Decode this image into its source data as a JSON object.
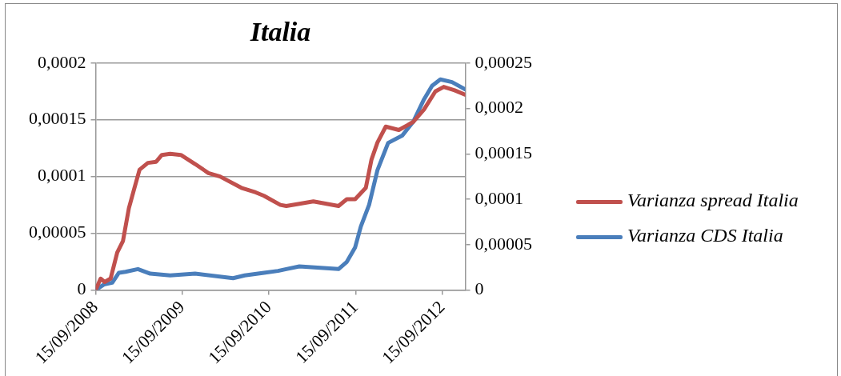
{
  "chart_data": {
    "type": "line",
    "title": "Italia",
    "xlim": [
      "2008-09-15",
      "2012-12-20"
    ],
    "xticks": [
      {
        "value": "2008-09-15",
        "label": "15/09/2008"
      },
      {
        "value": "2009-09-15",
        "label": "15/09/2009"
      },
      {
        "value": "2010-09-15",
        "label": "15/09/2010"
      },
      {
        "value": "2011-09-15",
        "label": "15/09/2011"
      },
      {
        "value": "2012-09-15",
        "label": "15/09/2012"
      }
    ],
    "ylim": [
      0,
      0.0002
    ],
    "yticks": [
      0,
      {
        "value": 5e-05,
        "label": "0,00005"
      },
      {
        "value": 0.0001,
        "label": "0,0001"
      },
      {
        "value": 0.00015,
        "label": "0,00015"
      },
      {
        "value": 0.0002,
        "label": "0,0002"
      }
    ],
    "y2lim": [
      0,
      0.00025
    ],
    "y2ticks": [
      0,
      {
        "value": 5e-05,
        "label": "0,00005"
      },
      {
        "value": 0.0001,
        "label": "0,0001"
      },
      {
        "value": 0.00015,
        "label": "0,00015"
      },
      {
        "value": 0.0002,
        "label": "0,0002"
      },
      {
        "value": 0.00025,
        "label": "0,00025"
      }
    ],
    "grid": "y",
    "legend": "right",
    "marker": "none",
    "line_style": "solid",
    "series": [
      {
        "name": "Varianza spread Italia",
        "color": "#c0504d",
        "x": [
          "2008-09-15",
          "2008-10-06",
          "2008-10-23",
          "2008-11-17",
          "2008-12-15",
          "2009-01-08",
          "2009-02-02",
          "2009-02-23",
          "2009-03-19",
          "2009-04-23",
          "2009-05-28",
          "2009-06-21",
          "2009-07-26",
          "2009-09-09",
          "2009-11-08",
          "2010-01-03",
          "2010-02-21",
          "2010-05-22",
          "2010-07-21",
          "2010-08-25",
          "2010-11-02",
          "2010-11-27",
          "2011-01-21",
          "2011-03-21",
          "2011-07-05",
          "2011-08-09",
          "2011-09-13",
          "2011-10-28",
          "2011-11-21",
          "2011-12-16",
          "2012-01-20",
          "2012-03-15",
          "2012-05-14",
          "2012-06-29",
          "2012-08-16",
          "2012-09-20",
          "2012-11-05",
          "2012-12-20"
        ],
        "values": [
          0,
          1e-05,
          7e-06,
          1e-05,
          3.3e-05,
          4.3e-05,
          7.2e-05,
          8.8e-05,
          0.000106,
          0.000112,
          0.000113,
          0.000119,
          0.00012,
          0.000119,
          0.000111,
          0.000103,
          0.0001,
          9e-05,
          8.6e-05,
          8.3e-05,
          7.5e-05,
          7.4e-05,
          7.6e-05,
          7.8e-05,
          7.4e-05,
          8e-05,
          8e-05,
          9e-05,
          0.000115,
          0.00013,
          0.000144,
          0.000141,
          0.000148,
          0.000159,
          0.000175,
          0.000179,
          0.000176,
          0.000172
        ]
      },
      {
        "name": "Varianza CDS Italia",
        "color": "#4a7ebb",
        "axis": "y2",
        "x": [
          "2008-09-15",
          "2008-10-20",
          "2008-11-24",
          "2008-12-22",
          "2009-01-19",
          "2009-03-12",
          "2009-05-03",
          "2009-07-26",
          "2009-11-08",
          "2010-04-17",
          "2010-06-05",
          "2010-08-25",
          "2010-10-23",
          "2010-11-27",
          "2011-01-21",
          "2011-07-05",
          "2011-08-09",
          "2011-09-13",
          "2011-10-07",
          "2011-11-11",
          "2011-12-16",
          "2012-01-30",
          "2012-03-29",
          "2012-05-14",
          "2012-06-29",
          "2012-08-02",
          "2012-09-06",
          "2012-10-25",
          "2012-12-20"
        ],
        "values": [
          0,
          6e-06,
          8e-06,
          1.9e-05,
          2e-05,
          2.3e-05,
          1.8e-05,
          1.6e-05,
          1.8e-05,
          1.3e-05,
          1.6e-05,
          1.9e-05,
          2.1e-05,
          2.3e-05,
          2.6e-05,
          2.3e-05,
          3.1e-05,
          4.7e-05,
          7e-05,
          9.4e-05,
          0.000132,
          0.000162,
          0.00017,
          0.000185,
          0.00021,
          0.000225,
          0.000232,
          0.000229,
          0.000221
        ]
      }
    ]
  }
}
